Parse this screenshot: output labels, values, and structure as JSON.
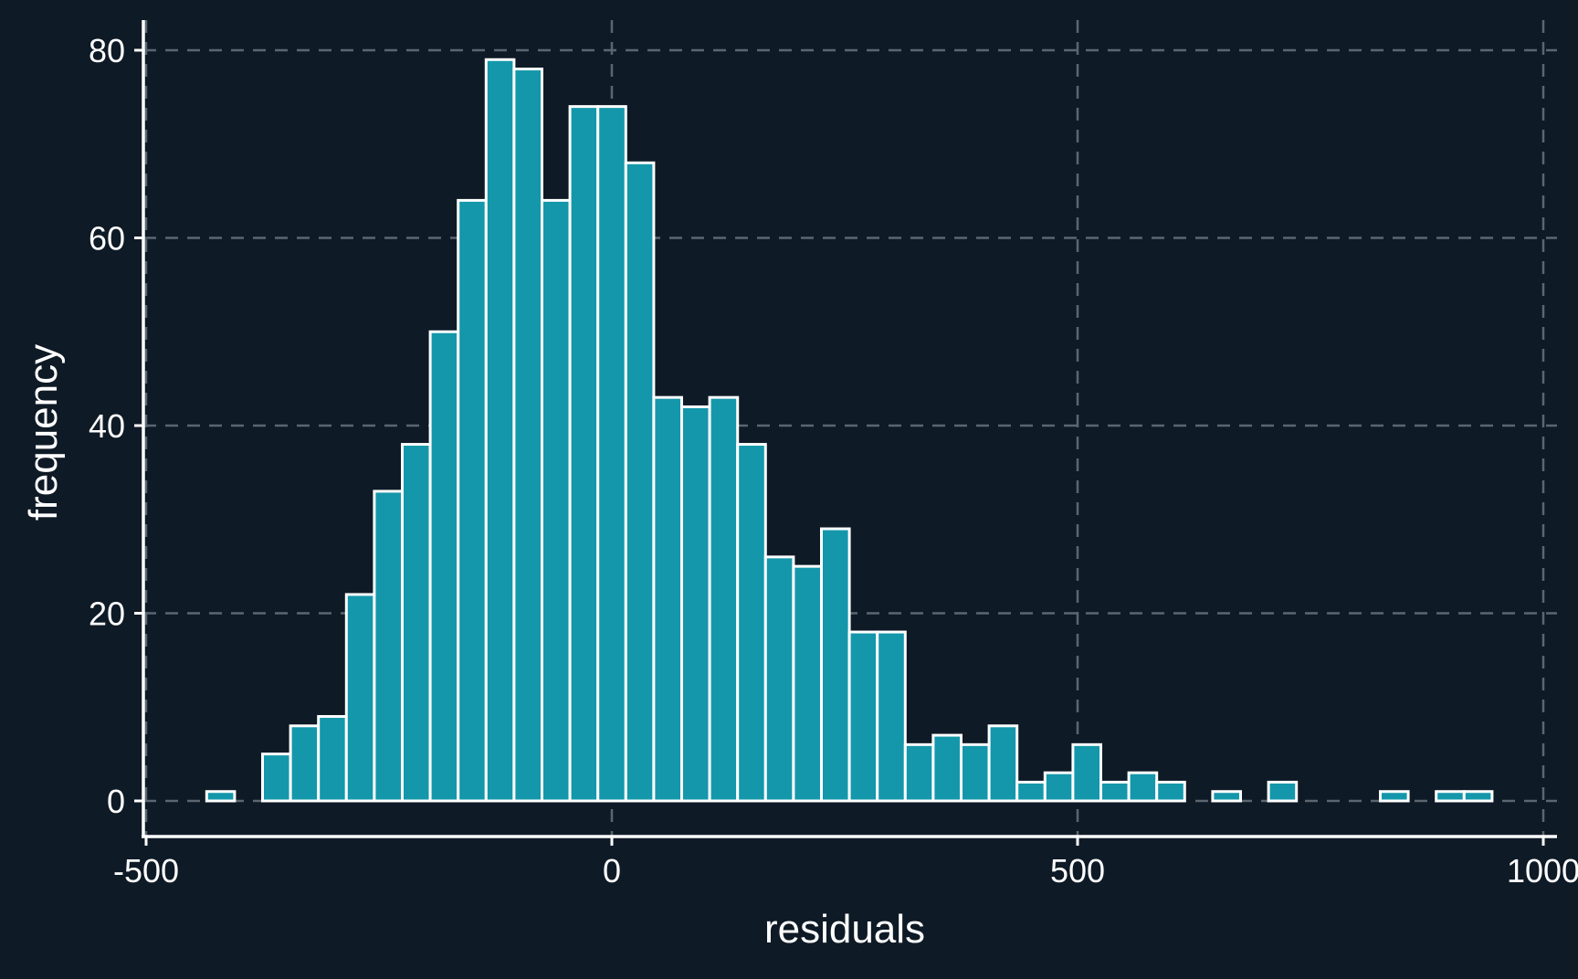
{
  "chart_data": {
    "type": "bar",
    "title": "",
    "xlabel": "residuals",
    "ylabel": "frequency",
    "xlim": [
      -500,
      1000
    ],
    "ylim": [
      0,
      80
    ],
    "xticks": [
      -500,
      0,
      500,
      1000
    ],
    "yticks": [
      0,
      20,
      40,
      60,
      80
    ],
    "xtick_labels": [
      "-500",
      "0",
      "500",
      "1000"
    ],
    "ytick_labels": [
      "0",
      "20",
      "40",
      "60",
      "80"
    ],
    "grid": true,
    "legend": "none",
    "bin_start": -435,
    "bin_width": 30,
    "values": [
      1,
      0,
      5,
      8,
      9,
      22,
      33,
      38,
      50,
      64,
      79,
      78,
      64,
      74,
      74,
      68,
      43,
      42,
      43,
      38,
      26,
      25,
      29,
      18,
      18,
      6,
      7,
      6,
      8,
      2,
      3,
      6,
      2,
      3,
      2,
      0,
      1,
      0,
      2,
      0,
      0,
      0,
      1,
      0,
      1,
      1
    ]
  },
  "colors": {
    "background": "#0e1a26",
    "bar_fill": "#1497aa",
    "bar_edge": "#ffffff",
    "grid": "#5b6670",
    "axis": "#ffffff",
    "text": "#ffffff"
  }
}
